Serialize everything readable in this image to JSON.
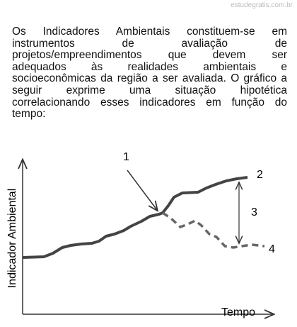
{
  "watermark": "estudegratis.com.br",
  "paragraph": {
    "lines": [
      "Os Indicadores Ambientais constituem-se em",
      "instrumentos de avaliação de",
      "projetos/empreendimentos que devem ser",
      "adequados às realidades ambientais e",
      "socioeconômicas da região a ser avaliada. O gráfico a",
      "seguir exprime uma situação hipotética",
      "correlacionando esses indicadores em função do",
      "tempo:"
    ]
  },
  "figure": {
    "y_axis_label": "Indicador Ambiental",
    "x_axis_label": "Tempo",
    "labels": [
      "1",
      "2",
      "3",
      "4"
    ]
  }
}
